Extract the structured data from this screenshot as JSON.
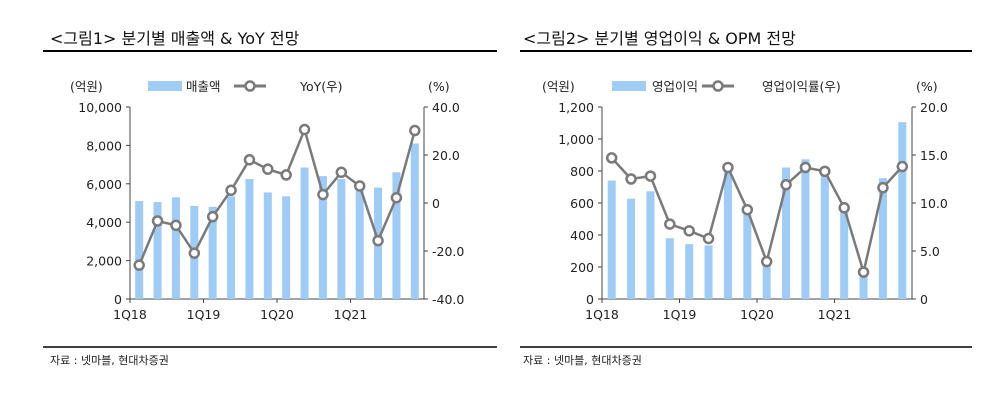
{
  "chart_data": [
    {
      "type": "bar+line",
      "title": "<그림1> 분기별 매출액 & YoY 전망",
      "left_unit": "(억원)",
      "right_unit": "(%)",
      "x": [
        "1Q18",
        "2Q18",
        "3Q18",
        "4Q18",
        "1Q19",
        "2Q19",
        "3Q19",
        "4Q19",
        "1Q20",
        "2Q20",
        "3Q20",
        "4Q20",
        "1Q21",
        "2Q21",
        "3Q21",
        "4Q21"
      ],
      "x_tick_labels": [
        "1Q18",
        "1Q19",
        "1Q20",
        "1Q21"
      ],
      "left_ticks": [
        "0",
        "2,000",
        "4,000",
        "6,000",
        "8,000",
        "10,000"
      ],
      "right_ticks": [
        "-40.0",
        "-20.0",
        "0",
        "20.0",
        "40.0"
      ],
      "ylim_left": [
        0,
        10000
      ],
      "ylim_right": [
        -40,
        40
      ],
      "series": [
        {
          "name": "매출액",
          "axis": "left",
          "type": "bar",
          "color": "#9fcbf7",
          "values": [
            5100,
            5050,
            5300,
            4850,
            4800,
            5350,
            6250,
            5550,
            5350,
            6850,
            6400,
            6250,
            5700,
            5800,
            6600,
            8100
          ]
        },
        {
          "name": "YoY(우)",
          "axis": "right",
          "type": "line",
          "color": "#7a7a7a",
          "values": [
            -25.9,
            -7.5,
            -9.3,
            -20.9,
            -5.7,
            5.3,
            18.0,
            14.1,
            11.7,
            30.6,
            3.5,
            12.8,
            7.1,
            -15.7,
            2.2,
            30.2
          ]
        }
      ],
      "source": "자료 : 넷마블, 현대차증권"
    },
    {
      "type": "bar+line",
      "title": "<그림2> 분기별 영업이익 & OPM 전망",
      "left_unit": "(억원)",
      "right_unit": "(%)",
      "x": [
        "1Q18",
        "2Q18",
        "3Q18",
        "4Q18",
        "1Q19",
        "2Q19",
        "3Q19",
        "4Q19",
        "1Q20",
        "2Q20",
        "3Q20",
        "4Q20",
        "1Q21",
        "2Q21",
        "3Q21",
        "4Q21"
      ],
      "x_tick_labels": [
        "1Q18",
        "1Q19",
        "1Q20",
        "1Q21"
      ],
      "left_ticks": [
        "0",
        "200",
        "400",
        "600",
        "800",
        "1,000",
        "1,200"
      ],
      "right_ticks": [
        "0",
        "5.0",
        "10.0",
        "15.0",
        "20.0"
      ],
      "ylim_left": [
        0,
        1200
      ],
      "ylim_right": [
        0,
        20
      ],
      "series": [
        {
          "name": "영업이익",
          "axis": "left",
          "type": "bar",
          "color": "#9fcbf7",
          "values": [
            740,
            627,
            673,
            380,
            343,
            335,
            800,
            530,
            230,
            822,
            873,
            790,
            560,
            160,
            755,
            1105
          ]
        },
        {
          "name": "영업이익률(우)",
          "axis": "right",
          "type": "line",
          "color": "#7a7a7a",
          "values": [
            14.7,
            12.5,
            12.8,
            7.8,
            7.1,
            6.3,
            13.7,
            9.3,
            3.9,
            11.9,
            13.7,
            13.3,
            9.5,
            2.8,
            11.6,
            13.8
          ]
        }
      ],
      "source": "자료 : 넷마블, 현대차증권"
    }
  ]
}
